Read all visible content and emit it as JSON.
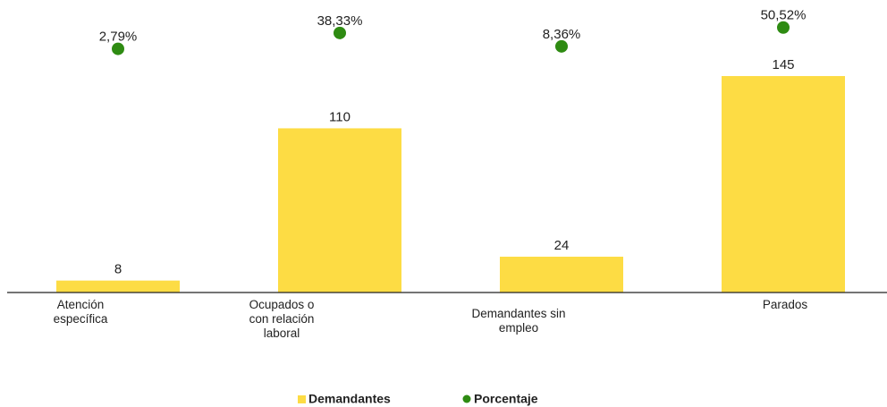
{
  "chart_data": {
    "type": "bar",
    "categories": [
      "Atención específica",
      "Ocupados o con relación laboral",
      "Demandantes sin empleo",
      "Parados"
    ],
    "series": [
      {
        "name": "Demandantes",
        "type": "bar",
        "color": "#fddc44",
        "values": [
          8,
          110,
          24,
          145
        ]
      },
      {
        "name": "Porcentaje",
        "type": "scatter",
        "axis": "y2",
        "color": "#2e8b12",
        "values": [
          2.79,
          38.33,
          8.36,
          50.52
        ],
        "value_labels": [
          "2,79%",
          "38,33%",
          "8,36%",
          "50,52%"
        ]
      }
    ],
    "ylim": [
      0,
      160
    ],
    "y2lim": [
      0,
      100
    ],
    "legend": "bottom"
  }
}
